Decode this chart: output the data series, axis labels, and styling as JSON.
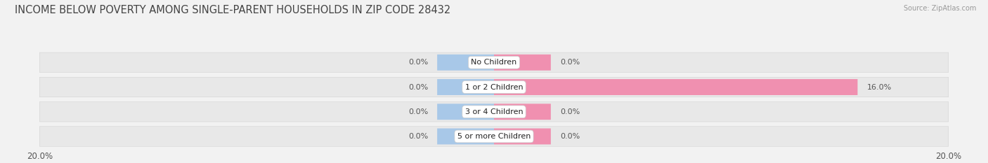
{
  "title": "INCOME BELOW POVERTY AMONG SINGLE-PARENT HOUSEHOLDS IN ZIP CODE 28432",
  "source": "Source: ZipAtlas.com",
  "categories": [
    "No Children",
    "1 or 2 Children",
    "3 or 4 Children",
    "5 or more Children"
  ],
  "single_father": [
    0.0,
    0.0,
    0.0,
    0.0
  ],
  "single_mother": [
    0.0,
    16.0,
    0.0,
    0.0
  ],
  "father_color": "#a8c8e8",
  "mother_color": "#f090b0",
  "axis_min": -20.0,
  "axis_max": 20.0,
  "background_color": "#f2f2f2",
  "bar_bg_color": "#e4e4e4",
  "row_bg_color": "#e8e8e8",
  "title_fontsize": 10.5,
  "label_fontsize": 8,
  "tick_fontsize": 8.5,
  "legend_fontsize": 8.5,
  "father_stub": 2.5,
  "mother_stub": 2.5
}
